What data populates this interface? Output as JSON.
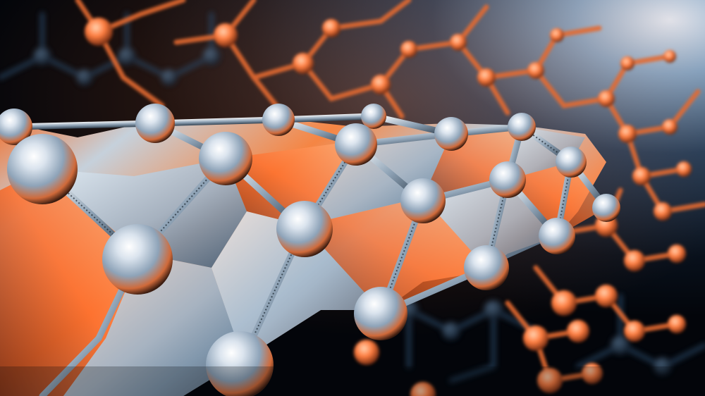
{
  "image": {
    "subject": "graphene-lattice",
    "colors": {
      "background": "#05070b",
      "deep_blue": "#0b1d33",
      "orange_accent": "#ff6a2a",
      "warm_glow": "#ff8a4a",
      "sheet_light": "#c9d6e3",
      "node_highlight": "#eef3f8"
    }
  }
}
